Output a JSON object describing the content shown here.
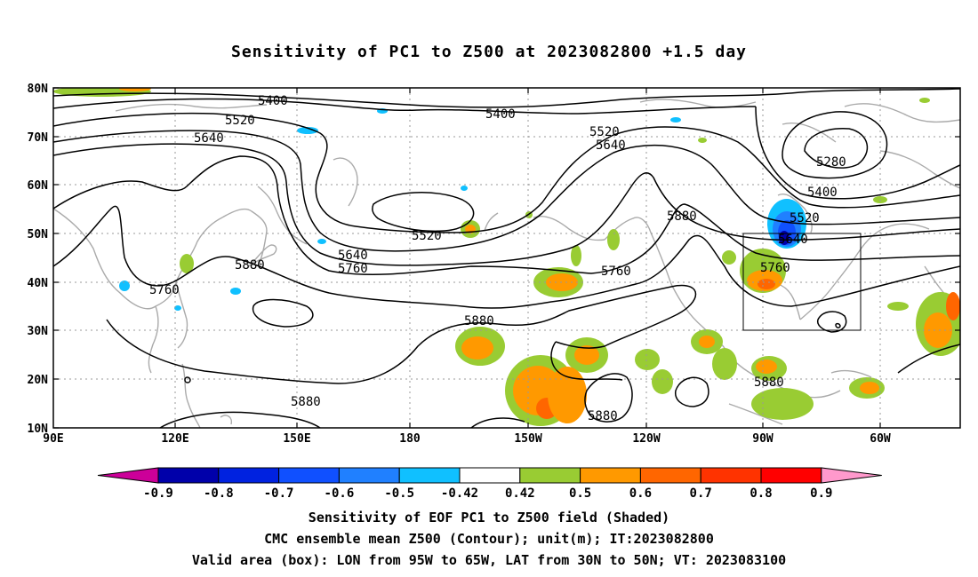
{
  "title": "Sensitivity of PC1 to Z500 at 2023082800 +1.5 day",
  "lat_ticks": [
    "80N",
    "70N",
    "60N",
    "50N",
    "40N",
    "30N",
    "20N",
    "10N"
  ],
  "lon_ticks": [
    "90E",
    "120E",
    "150E",
    "180",
    "150W",
    "120W",
    "90W",
    "60W"
  ],
  "contour_labels": {
    "c5400a": "5400",
    "c5400b": "5400",
    "c5400c": "5400",
    "c5520a": "5520",
    "c5520b": "5520",
    "c5520c": "5520",
    "c5520d": "5520",
    "c5640a": "5640",
    "c5640b": "5640",
    "c5640c": "5640",
    "c5640d": "5640",
    "c5760a": "5760",
    "c5760b": "5760",
    "c5760c": "5760",
    "c5760d": "5760",
    "c5880a": "5880",
    "c5880b": "5880",
    "c5880c": "5880",
    "c5880d": "5880",
    "c5880e": "5880",
    "c5880f": "5880",
    "c5280": "5280"
  },
  "colorbar": {
    "labels": [
      "-0.9",
      "-0.8",
      "-0.7",
      "-0.6",
      "-0.5",
      "-0.42",
      "0.42",
      "0.5",
      "0.6",
      "0.7",
      "0.8",
      "0.9"
    ],
    "colors": [
      "#0000aa",
      "#0022e0",
      "#1050ff",
      "#2080ff",
      "#10c0ff",
      "#ffffff",
      "#99cc33",
      "#ff9900",
      "#ff6600",
      "#ff3300",
      "#ff0000"
    ],
    "low_arrow_color": "#cc0099",
    "high_arrow_color": "#ff99cc"
  },
  "captions": {
    "line1": "Sensitivity of EOF PC1 to Z500 field (Shaded)",
    "line2": "CMC ensemble mean Z500 (Contour); unit(m); IT:2023082800",
    "line3": "Valid area (box): LON from 95W to 65W, LAT from 30N to 50N; VT: 2023083100"
  }
}
